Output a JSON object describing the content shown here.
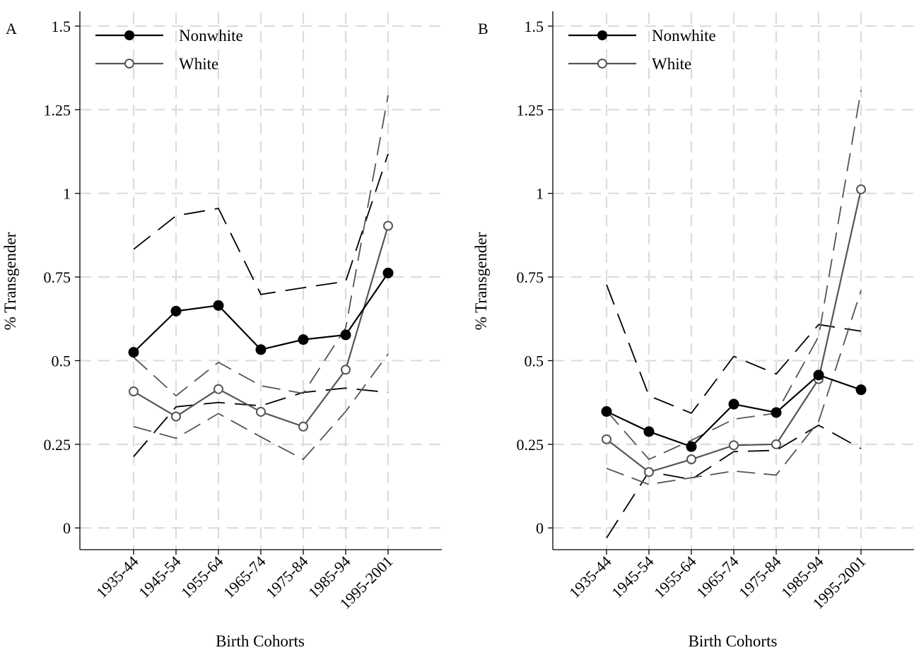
{
  "chart_data": [
    {
      "type": "line",
      "panel_label": "A",
      "xlabel": "Birth Cohorts",
      "ylabel": "% Transgender",
      "categories": [
        "1935-44",
        "1945-54",
        "1955-64",
        "1965-74",
        "1975-84",
        "1985-94",
        "1995-2001"
      ],
      "yticks": [
        {
          "value": 0,
          "label": "0"
        },
        {
          "value": 0.25,
          "label": "0.25"
        },
        {
          "value": 0.5,
          "label": "0.5"
        },
        {
          "value": 0.75,
          "label": "0.75"
        },
        {
          "value": 1,
          "label": "1"
        },
        {
          "value": 1.25,
          "label": "1.25"
        },
        {
          "value": 1.5,
          "label": "1.5"
        }
      ],
      "ylim": [
        -0.065,
        1.54
      ],
      "grid": true,
      "legend_position": "top-left",
      "series": [
        {
          "name": "Nonwhite",
          "color": "#000000",
          "marker": "filled-circle",
          "values": [
            0.525,
            0.648,
            0.665,
            0.533,
            0.563,
            0.577,
            0.762
          ],
          "ci_lower": [
            0.213,
            0.362,
            0.375,
            0.365,
            0.405,
            0.418,
            0.405
          ],
          "ci_upper": [
            0.833,
            0.933,
            0.955,
            0.698,
            0.718,
            0.737,
            1.118
          ]
        },
        {
          "name": "White",
          "color": "#555555",
          "marker": "hollow-circle",
          "values": [
            0.408,
            0.333,
            0.415,
            0.347,
            0.303,
            0.473,
            0.903
          ],
          "ci_lower": [
            0.303,
            0.268,
            0.342,
            0.272,
            0.205,
            0.348,
            0.52
          ],
          "ci_upper": [
            0.51,
            0.395,
            0.495,
            0.425,
            0.402,
            0.598,
            1.293
          ]
        }
      ]
    },
    {
      "type": "line",
      "panel_label": "B",
      "xlabel": "Birth Cohorts",
      "ylabel": "% Transgender",
      "categories": [
        "1935-44",
        "1945-54",
        "1955-64",
        "1965-74",
        "1975-84",
        "1985-94",
        "1995-2001"
      ],
      "yticks": [
        {
          "value": 0,
          "label": "0"
        },
        {
          "value": 0.25,
          "label": "0.25"
        },
        {
          "value": 0.5,
          "label": "0.5"
        },
        {
          "value": 0.75,
          "label": "0.75"
        },
        {
          "value": 1,
          "label": "1"
        },
        {
          "value": 1.25,
          "label": "1.25"
        },
        {
          "value": 1.5,
          "label": "1.5"
        }
      ],
      "ylim": [
        -0.065,
        1.54
      ],
      "grid": true,
      "legend_position": "top-left",
      "series": [
        {
          "name": "Nonwhite",
          "color": "#000000",
          "marker": "filled-circle",
          "values": [
            0.348,
            0.288,
            0.243,
            0.37,
            0.345,
            0.457,
            0.413
          ],
          "ci_lower": [
            -0.03,
            0.168,
            0.145,
            0.228,
            0.232,
            0.307,
            0.237
          ],
          "ci_upper": [
            0.727,
            0.395,
            0.343,
            0.513,
            0.46,
            0.608,
            0.588
          ]
        },
        {
          "name": "White",
          "color": "#555555",
          "marker": "hollow-circle",
          "values": [
            0.265,
            0.167,
            0.205,
            0.247,
            0.25,
            0.445,
            1.012
          ],
          "ci_lower": [
            0.178,
            0.13,
            0.15,
            0.17,
            0.158,
            0.318,
            0.71
          ],
          "ci_upper": [
            0.35,
            0.205,
            0.262,
            0.325,
            0.343,
            0.572,
            1.308
          ]
        }
      ]
    }
  ]
}
